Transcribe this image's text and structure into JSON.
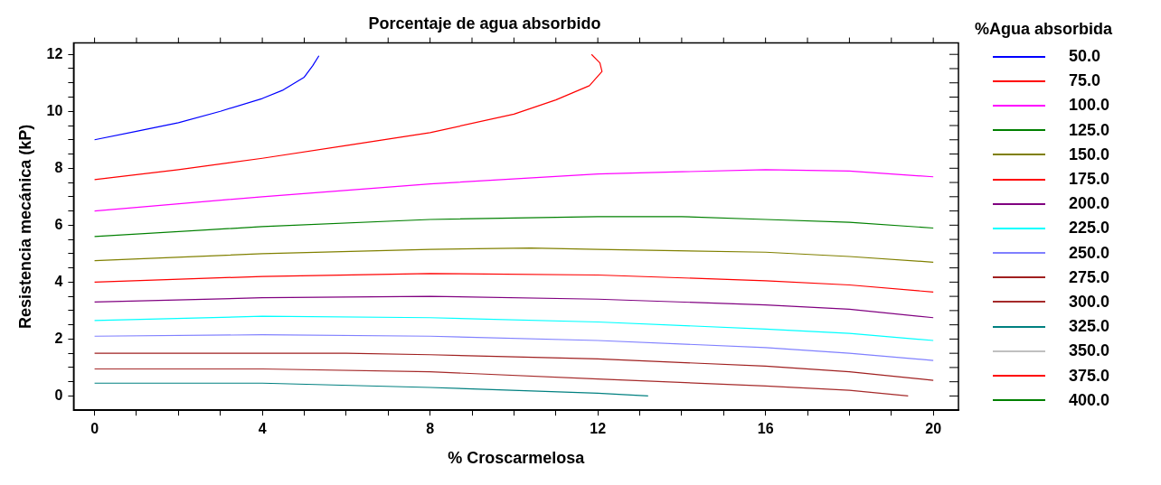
{
  "chart_data": {
    "type": "line",
    "title": "Porcentaje de agua absorbido",
    "xlabel": "% Croscarmelosa",
    "ylabel": "Resistencia mecánica (kP)",
    "legend_title": "%Agua absorbida",
    "xlim": [
      -0.5,
      20.6
    ],
    "ylim": [
      -0.5,
      12.4
    ],
    "xticks": [
      0,
      {
        "value": 1,
        "label": null
      },
      {
        "value": 2,
        "label": null
      },
      {
        "value": 3,
        "label": null
      },
      4,
      {
        "value": 5,
        "label": null
      },
      {
        "value": 6,
        "label": null
      },
      {
        "value": 7,
        "label": null
      },
      8,
      {
        "value": 9,
        "label": null
      },
      {
        "value": 10,
        "label": null
      },
      {
        "value": 11,
        "label": null
      },
      12,
      {
        "value": 13,
        "label": null
      },
      {
        "value": 14,
        "label": null
      },
      {
        "value": 15,
        "label": null
      },
      16,
      {
        "value": 17,
        "label": null
      },
      {
        "value": 18,
        "label": null
      },
      {
        "value": 19,
        "label": null
      },
      20
    ],
    "yticks": [
      0,
      {
        "value": 0.5,
        "label": null
      },
      {
        "value": 1,
        "label": null
      },
      {
        "value": 1.5,
        "label": null
      },
      2,
      {
        "value": 2.5,
        "label": null
      },
      {
        "value": 3,
        "label": null
      },
      {
        "value": 3.5,
        "label": null
      },
      4,
      {
        "value": 4.5,
        "label": null
      },
      {
        "value": 5,
        "label": null
      },
      {
        "value": 5.5,
        "label": null
      },
      6,
      {
        "value": 6.5,
        "label": null
      },
      {
        "value": 7,
        "label": null
      },
      {
        "value": 7.5,
        "label": null
      },
      8,
      {
        "value": 8.5,
        "label": null
      },
      {
        "value": 9,
        "label": null
      },
      {
        "value": 9.5,
        "label": null
      },
      10,
      {
        "value": 10.5,
        "label": null
      },
      {
        "value": 11,
        "label": null
      },
      {
        "value": 11.5,
        "label": null
      },
      12
    ],
    "grid": false,
    "legend": "right",
    "marker": "none",
    "line_style": "solid",
    "series": [
      {
        "name": "50.0",
        "color": "#0000ff",
        "x": [
          0,
          1,
          2,
          3,
          4,
          4.5,
          5,
          5.2,
          5.35
        ],
        "values": [
          9.0,
          9.3,
          9.6,
          10.0,
          10.45,
          10.75,
          11.2,
          11.6,
          11.95
        ]
      },
      {
        "name": "75.0",
        "color": "#ff0000",
        "x": [
          0,
          2,
          4,
          6,
          8,
          10,
          11,
          11.8,
          12.1,
          12.05,
          11.85
        ],
        "values": [
          7.6,
          7.95,
          8.35,
          8.8,
          9.25,
          9.9,
          10.4,
          10.9,
          11.4,
          11.7,
          12.0
        ]
      },
      {
        "name": "100.0",
        "color": "#ff00ff",
        "x": [
          0,
          4,
          8,
          12,
          16,
          18,
          20
        ],
        "values": [
          6.5,
          7.0,
          7.45,
          7.8,
          7.95,
          7.9,
          7.7
        ]
      },
      {
        "name": "125.0",
        "color": "#008000",
        "x": [
          0,
          4,
          8,
          12,
          14,
          16,
          18,
          20
        ],
        "values": [
          5.6,
          5.95,
          6.2,
          6.3,
          6.3,
          6.2,
          6.1,
          5.9
        ]
      },
      {
        "name": "150.0",
        "color": "#808000",
        "x": [
          0,
          4,
          8,
          10.4,
          12,
          16,
          18,
          20
        ],
        "values": [
          4.75,
          5.0,
          5.15,
          5.2,
          5.15,
          5.05,
          4.9,
          4.7
        ]
      },
      {
        "name": "175.0",
        "color": "#ff0000",
        "x": [
          0,
          4,
          8,
          12,
          16,
          18,
          20
        ],
        "values": [
          4.0,
          4.2,
          4.3,
          4.25,
          4.05,
          3.9,
          3.65
        ]
      },
      {
        "name": "200.0",
        "color": "#800080",
        "x": [
          0,
          4,
          8,
          12,
          16,
          18,
          20
        ],
        "values": [
          3.3,
          3.45,
          3.5,
          3.4,
          3.2,
          3.05,
          2.75
        ]
      },
      {
        "name": "225.0",
        "color": "#00ffff",
        "x": [
          0,
          4,
          8,
          12,
          16,
          18,
          20
        ],
        "values": [
          2.65,
          2.8,
          2.75,
          2.6,
          2.35,
          2.2,
          1.95
        ]
      },
      {
        "name": "250.0",
        "color": "#8080ff",
        "x": [
          0,
          4,
          8,
          12,
          16,
          18,
          20
        ],
        "values": [
          2.1,
          2.15,
          2.1,
          1.95,
          1.7,
          1.5,
          1.25
        ]
      },
      {
        "name": "275.0",
        "color": "#a02020",
        "x": [
          0,
          6,
          8,
          12,
          16,
          18,
          20
        ],
        "values": [
          1.5,
          1.5,
          1.45,
          1.3,
          1.05,
          0.85,
          0.55
        ]
      },
      {
        "name": "300.0",
        "color": "#a52a2a",
        "x": [
          0,
          4,
          8,
          12,
          16,
          18,
          19.4
        ],
        "values": [
          0.95,
          0.95,
          0.85,
          0.6,
          0.35,
          0.2,
          0.0
        ]
      },
      {
        "name": "325.0",
        "color": "#008080",
        "x": [
          0,
          4,
          8,
          12,
          13.2
        ],
        "values": [
          0.45,
          0.45,
          0.3,
          0.1,
          0.0
        ]
      },
      {
        "name": "350.0",
        "color": "#c0c0c0"
      },
      {
        "name": "375.0",
        "color": "#ff0000"
      },
      {
        "name": "400.0",
        "color": "#008000"
      }
    ]
  }
}
